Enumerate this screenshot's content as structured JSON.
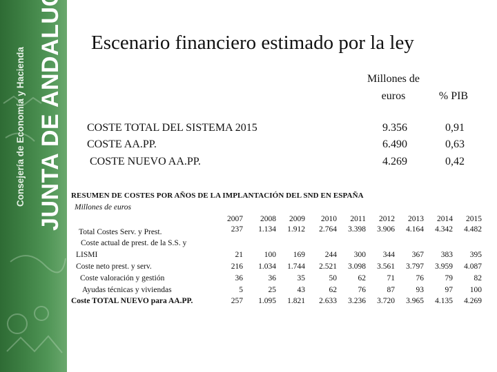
{
  "banner": {
    "main_text": "JUNTA DE ANDALUCIA",
    "sub_text": "Consejería de Economía y Hacienda",
    "color": "#3d7f43"
  },
  "title": "Escenario financiero estimado por la ley",
  "summary": {
    "col_millones_line1": "Millones de",
    "col_millones_line2": "euros",
    "col_pib": "% PIB",
    "rows": [
      {
        "label": "COSTE TOTAL DEL SISTEMA 2015",
        "millones": "9.356",
        "pib": "0,91"
      },
      {
        "label": "COSTE AA.PP.",
        "millones": "6.490",
        "pib": "0,63"
      },
      {
        "label": "COSTE NUEVO AA.PP.",
        "millones": "4.269",
        "pib": "0,42"
      }
    ]
  },
  "resumen": {
    "heading": "RESUMEN DE COSTES POR AÑOS DE LA IMPLANTACIÓN DEL SND EN ESPAÑA",
    "unit": "Millones de euros",
    "years": [
      "2007",
      "2008",
      "2009",
      "2010",
      "2011",
      "2012",
      "2013",
      "2014",
      "2015"
    ],
    "rows": [
      {
        "label": "Total Costes Serv. y Prest.",
        "values": [
          "237",
          "1.134",
          "1.912",
          "2.764",
          "3.398",
          "3.906",
          "4.164",
          "4.342",
          "4.482"
        ]
      },
      {
        "label_line1": "Coste actual de prest. de la S.S. y",
        "label_line2": "LISMI",
        "values": [
          "21",
          "100",
          "169",
          "244",
          "300",
          "344",
          "367",
          "383",
          "395"
        ]
      },
      {
        "label": "Coste neto prest. y serv.",
        "values": [
          "216",
          "1.034",
          "1.744",
          "2.521",
          "3.098",
          "3.561",
          "3.797",
          "3.959",
          "4.087"
        ]
      },
      {
        "label": "Coste valoración y gestión",
        "values": [
          "36",
          "36",
          "35",
          "50",
          "62",
          "71",
          "76",
          "79",
          "82"
        ]
      },
      {
        "label": "Ayudas técnicas y viviendas",
        "values": [
          "5",
          "25",
          "43",
          "62",
          "76",
          "87",
          "93",
          "97",
          "100"
        ]
      },
      {
        "label": "Coste TOTAL NUEVO para AA.PP.",
        "values": [
          "257",
          "1.095",
          "1.821",
          "2.633",
          "3.236",
          "3.720",
          "3.965",
          "4.135",
          "4.269"
        ]
      }
    ]
  }
}
